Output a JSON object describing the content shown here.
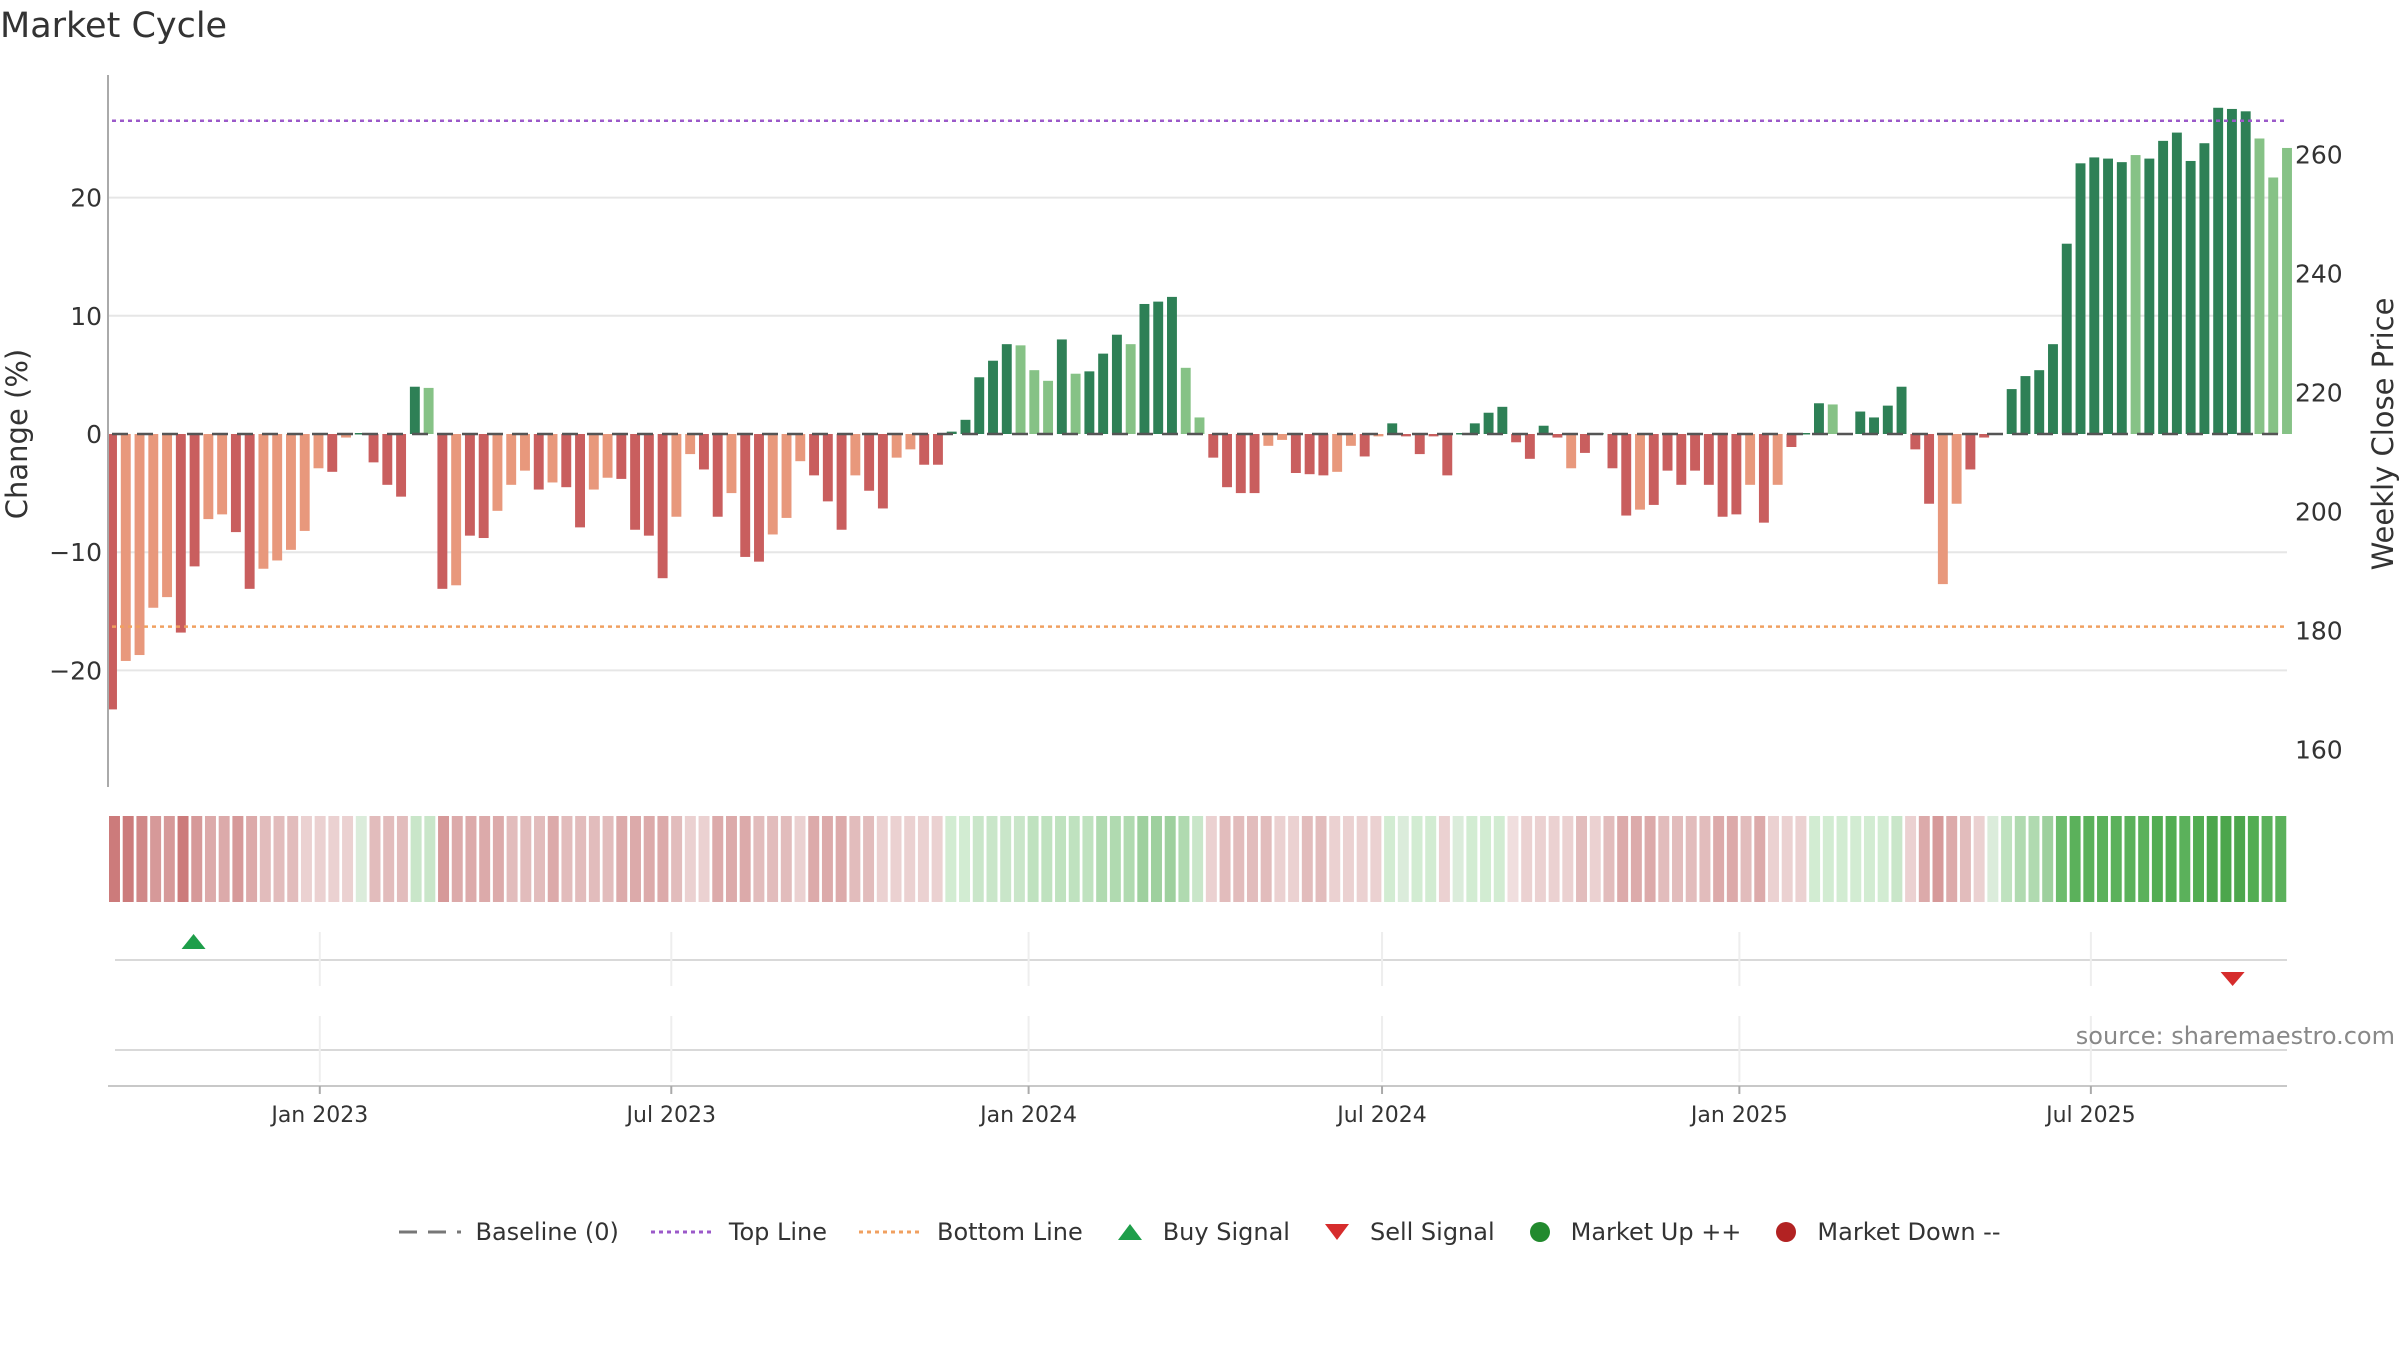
{
  "title": "Market Cycle",
  "source": "source: sharemaestro.com",
  "colors": {
    "red_strong": "#c95e5e",
    "red_light": "#e8987c",
    "green_strong": "#2e8056",
    "green_light": "#86c286",
    "top_line": "#9b59c9",
    "bottom_line": "#f0a060",
    "buy": "#1e9e4a",
    "sell": "#d62c2c",
    "market_up": "#228a2e",
    "market_down": "#b22222"
  },
  "legend": [
    {
      "key": "baseline",
      "label": "Baseline (0)"
    },
    {
      "key": "top",
      "label": "Top Line"
    },
    {
      "key": "bottom",
      "label": "Bottom Line"
    },
    {
      "key": "buy",
      "label": "Buy Signal"
    },
    {
      "key": "sell",
      "label": "Sell Signal"
    },
    {
      "key": "up",
      "label": "Market Up ++"
    },
    {
      "key": "down",
      "label": "Market Down --"
    }
  ],
  "chart_data": {
    "type": "bar",
    "ylabel": "Change (%)",
    "y2label": "Weekly Close Price",
    "ylim": [
      -30,
      30
    ],
    "y2lim": [
      155,
      270
    ],
    "y_ticks": [
      -20,
      -10,
      0,
      10,
      20
    ],
    "y_tick_labels": [
      "−20",
      "−10",
      "0",
      "10",
      "20"
    ],
    "y2_ticks": [
      160,
      180,
      200,
      220,
      240,
      260
    ],
    "top_line": 26.5,
    "bottom_line": -16.3,
    "x_start": "2022-09-16",
    "x_end": "2025-10-10",
    "x_ticks": [
      "2023-01-01",
      "2023-07-01",
      "2024-01-01",
      "2024-07-01",
      "2025-01-01",
      "2025-07-01"
    ],
    "x_tick_labels": [
      "Jan 2023",
      "Jul 2023",
      "Jan 2024",
      "Jul 2024",
      "Jan 2025",
      "Jul 2025"
    ],
    "bar_values": [
      -23.3,
      -19.2,
      -18.7,
      -14.7,
      -13.8,
      -16.8,
      -11.2,
      -7.2,
      -6.8,
      -8.3,
      -13.1,
      -11.4,
      -10.7,
      -9.8,
      -8.2,
      -2.9,
      -3.2,
      -0.3,
      0,
      -2.4,
      -4.3,
      -5.3,
      4.0,
      3.9,
      -13.1,
      -12.8,
      -8.6,
      -8.8,
      -6.5,
      -4.3,
      -3.1,
      -4.7,
      -4.1,
      -4.5,
      -7.9,
      -4.7,
      -3.7,
      -3.8,
      -8.1,
      -8.6,
      -12.2,
      -7.0,
      -1.7,
      -3.0,
      -7.0,
      -5.0,
      -10.4,
      -10.8,
      -8.5,
      -7.1,
      -2.3,
      -3.5,
      -5.7,
      -8.1,
      -3.5,
      -4.8,
      -6.3,
      -2.0,
      -1.3,
      -2.6,
      -2.6,
      0.2,
      1.2,
      4.8,
      6.2,
      7.6,
      7.5,
      5.4,
      4.5,
      8.0,
      5.1,
      5.3,
      6.8,
      8.4,
      7.6,
      11.0,
      11.2,
      11.6,
      5.6,
      1.4,
      -2.0,
      -4.5,
      -5.0,
      -5.0,
      -1.0,
      -0.5,
      -3.3,
      -3.4,
      -3.5,
      -3.2,
      -1.0,
      -1.9,
      -0.2,
      0.9,
      -0.2,
      -1.7,
      -0.2,
      -3.5,
      0,
      0.9,
      1.8,
      2.3,
      -0.7,
      -2.1,
      0.7,
      -0.3,
      -2.9,
      -1.6,
      0,
      -2.9,
      -6.9,
      -6.4,
      -6.0,
      -3.1,
      -4.3,
      -3.1,
      -4.3,
      -7.0,
      -6.8,
      -4.3,
      -7.5,
      -4.3,
      -1.1,
      0,
      2.6,
      2.5,
      0,
      1.9,
      1.4,
      2.4,
      4.0,
      -1.3,
      -5.9,
      -12.7,
      -5.9,
      -3.0,
      -0.3,
      0,
      3.8,
      4.9,
      5.4,
      7.6,
      16.1,
      22.9,
      23.4,
      23.3,
      23.0,
      23.6,
      23.3,
      24.8,
      25.5,
      23.1,
      24.6,
      27.6,
      27.5,
      27.3,
      25.0,
      21.7,
      24.2
    ],
    "bar_shades": [
      "s",
      "l",
      "l",
      "l",
      "l",
      "s",
      "s",
      "l",
      "l",
      "s",
      "s",
      "l",
      "l",
      "l",
      "l",
      "l",
      "s",
      "l",
      "s",
      "s",
      "s",
      "s",
      "s",
      "l",
      "s",
      "l",
      "s",
      "s",
      "l",
      "l",
      "l",
      "s",
      "l",
      "s",
      "s",
      "l",
      "l",
      "s",
      "s",
      "s",
      "s",
      "l",
      "l",
      "s",
      "s",
      "l",
      "s",
      "s",
      "l",
      "l",
      "l",
      "s",
      "s",
      "s",
      "l",
      "s",
      "s",
      "l",
      "l",
      "s",
      "s",
      "s",
      "s",
      "s",
      "s",
      "s",
      "l",
      "l",
      "l",
      "s",
      "l",
      "s",
      "s",
      "s",
      "l",
      "s",
      "s",
      "s",
      "l",
      "l",
      "s",
      "s",
      "s",
      "s",
      "l",
      "l",
      "s",
      "s",
      "s",
      "l",
      "l",
      "s",
      "l",
      "s",
      "s",
      "s",
      "s",
      "s",
      "s",
      "s",
      "s",
      "s",
      "s",
      "s",
      "s",
      "s",
      "l",
      "s",
      "s",
      "s",
      "s",
      "l",
      "s",
      "s",
      "s",
      "s",
      "s",
      "s",
      "s",
      "l",
      "s",
      "l",
      "s",
      "s",
      "s",
      "l",
      "s",
      "s",
      "s",
      "s",
      "s",
      "s",
      "s",
      "l",
      "l",
      "s",
      "s",
      "s",
      "s",
      "s",
      "s",
      "s",
      "s",
      "s",
      "s",
      "s",
      "s",
      "l",
      "s",
      "s",
      "s",
      "s",
      "s",
      "s",
      "s",
      "s",
      "l",
      "l",
      "l",
      "l",
      "l",
      "s"
    ],
    "band_colors": [
      "#cc7b7b",
      "#cc7b7b",
      "#d08888",
      "#d69999",
      "#d69999",
      "#cc7b7b",
      "#d69999",
      "#dcaaaa",
      "#dcaaaa",
      "#d69999",
      "#dcaaaa",
      "#e2bcbc",
      "#e2bcbc",
      "#e2bcbc",
      "#ebd1d1",
      "#ebd1d1",
      "#ebd1d1",
      "#ebd1d1",
      "#dbecdb",
      "#e2bcbc",
      "#e2bcbc",
      "#e2bcbc",
      "#c9e6c9",
      "#c9e6c9",
      "#d69999",
      "#dcaaaa",
      "#dcaaaa",
      "#dcaaaa",
      "#dcaaaa",
      "#e2bcbc",
      "#e2bcbc",
      "#e2bcbc",
      "#dcaaaa",
      "#e2bcbc",
      "#e2bcbc",
      "#e2bcbc",
      "#e2bcbc",
      "#dcaaaa",
      "#dcaaaa",
      "#dcaaaa",
      "#dcaaaa",
      "#e2bcbc",
      "#ebd1d1",
      "#ebd1d1",
      "#dcaaaa",
      "#dcaaaa",
      "#dcaaaa",
      "#e2bcbc",
      "#e2bcbc",
      "#e2bcbc",
      "#ebd1d1",
      "#dcaaaa",
      "#dcaaaa",
      "#dcaaaa",
      "#e2bcbc",
      "#e2bcbc",
      "#ebd1d1",
      "#ebd1d1",
      "#ebd1d1",
      "#ebd1d1",
      "#ebd1d1",
      "#d2ecd2",
      "#d2ecd2",
      "#c9e6c9",
      "#c9e6c9",
      "#c9e6c9",
      "#c9e6c9",
      "#bfe2bf",
      "#bfe2bf",
      "#bfe2bf",
      "#bfe2bf",
      "#bfe2bf",
      "#b0dab0",
      "#b0dab0",
      "#b0dab0",
      "#9ed09e",
      "#9ed09e",
      "#9ed09e",
      "#b0dab0",
      "#c9e6c9",
      "#ebd1d1",
      "#e2bcbc",
      "#e2bcbc",
      "#e2bcbc",
      "#e2bcbc",
      "#ebd1d1",
      "#ebd1d1",
      "#e2bcbc",
      "#e2bcbc",
      "#ebd1d1",
      "#ebd1d1",
      "#ebd1d1",
      "#ebd1d1",
      "#d2ecd2",
      "#dbecdb",
      "#d2ecd2",
      "#d2ecd2",
      "#ebd1d1",
      "#dbecdb",
      "#d2ecd2",
      "#d2ecd2",
      "#d2ecd2",
      "#f0dede",
      "#ebd1d1",
      "#ebd1d1",
      "#ebd1d1",
      "#ebd1d1",
      "#e2bcbc",
      "#ebd1d1",
      "#e2bcbc",
      "#dcaaaa",
      "#dcaaaa",
      "#dcaaaa",
      "#e2bcbc",
      "#e2bcbc",
      "#e2bcbc",
      "#e2bcbc",
      "#dcaaaa",
      "#dcaaaa",
      "#e2bcbc",
      "#dcaaaa",
      "#ebd1d1",
      "#ebd1d1",
      "#ebd1d1",
      "#d2ecd2",
      "#d2ecd2",
      "#d2ecd2",
      "#d2ecd2",
      "#d2ecd2",
      "#d2ecd2",
      "#c9e6c9",
      "#ebd1d1",
      "#dcaaaa",
      "#d69999",
      "#dcaaaa",
      "#e2bcbc",
      "#ebd1d1",
      "#dbecdb",
      "#bfe2bf",
      "#b0dab0",
      "#b0dab0",
      "#9ed09e",
      "#6cbc6c",
      "#5bb15b",
      "#5bb15b",
      "#5bb15b",
      "#5bb15b",
      "#5bb15b",
      "#5bb15b",
      "#52ad52",
      "#52ad52",
      "#5bb15b",
      "#52ad52",
      "#4ca64c",
      "#4ca64c",
      "#4ca64c",
      "#52ad52",
      "#5bb15b",
      "#5bb15b"
    ],
    "buy_signals": [
      "2022-10-28"
    ],
    "sell_signals": [
      "2025-09-12"
    ]
  }
}
